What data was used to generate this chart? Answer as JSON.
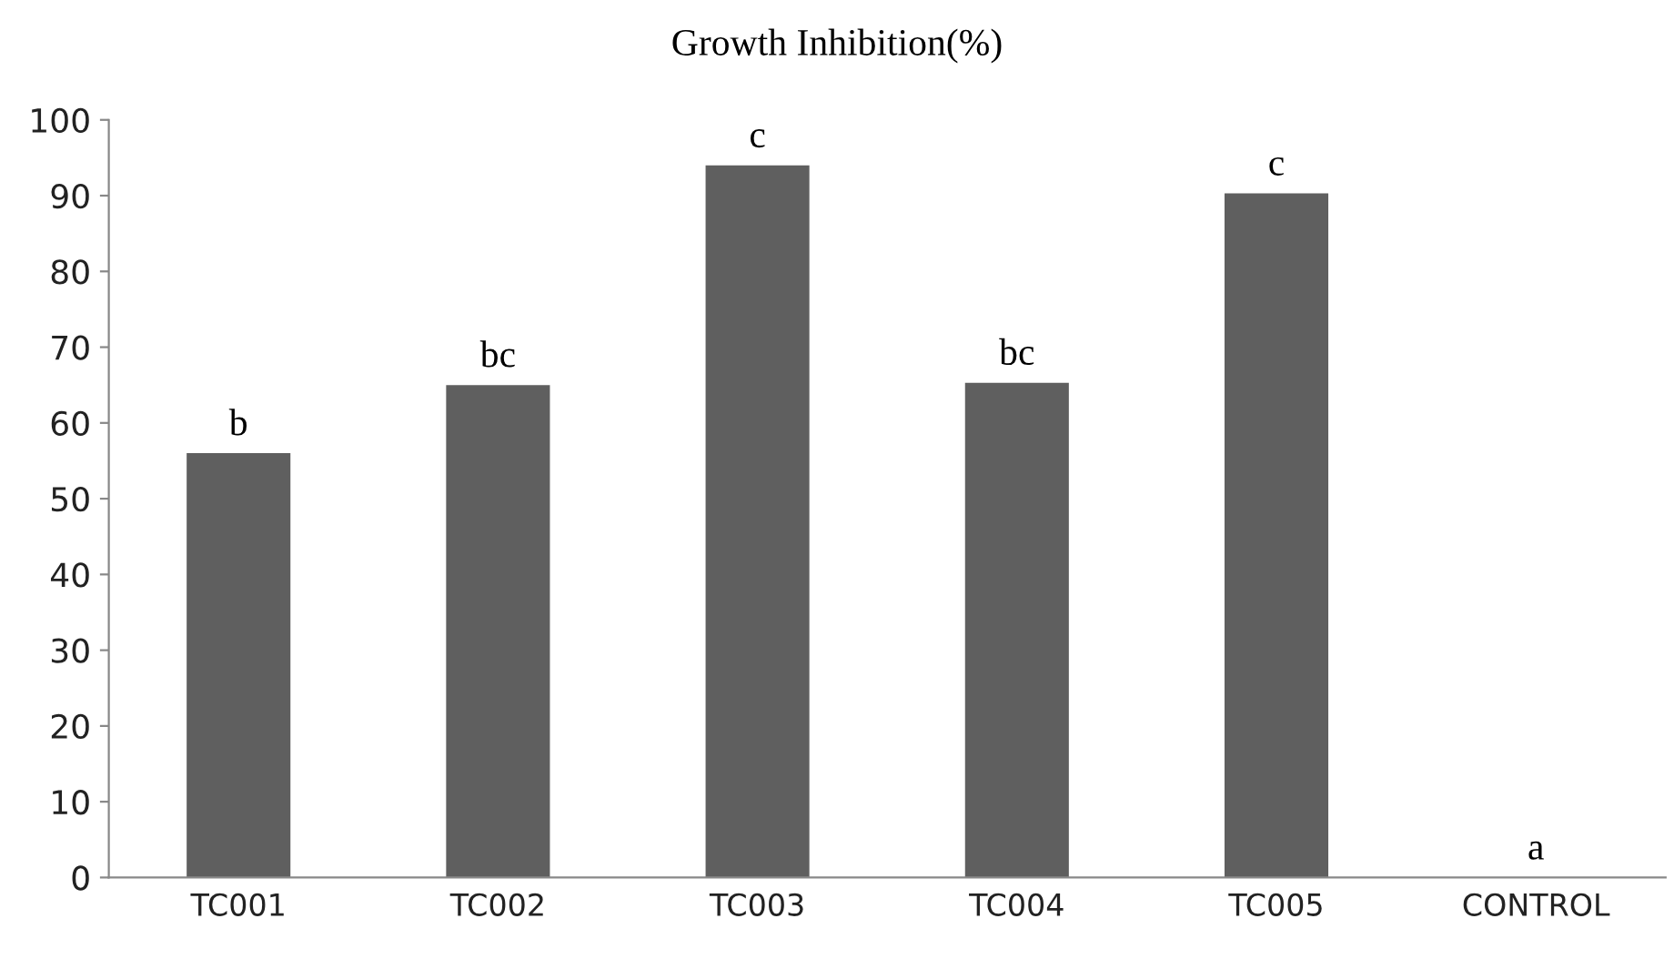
{
  "chart_data": {
    "type": "bar",
    "title": "Growth Inhibition(%)",
    "categories": [
      "TC001",
      "TC002",
      "TC003",
      "TC004",
      "TC005",
      "CONTROL"
    ],
    "values": [
      56,
      65,
      94,
      65.3,
      90.3,
      0
    ],
    "color": "#5f5f5f",
    "ylim": [
      0,
      100
    ],
    "yticks": [
      0,
      10,
      20,
      30,
      40,
      50,
      60,
      70,
      80,
      90,
      100
    ],
    "grid": false,
    "legend": false,
    "annotations": [
      {
        "text": "b",
        "x": "TC001",
        "y": 56
      },
      {
        "text": "bc",
        "x": "TC002",
        "y": 65
      },
      {
        "text": "c",
        "x": "TC003",
        "y": 94
      },
      {
        "text": "bc",
        "x": "TC004",
        "y": 65.3
      },
      {
        "text": "c",
        "x": "TC005",
        "y": 90.3
      },
      {
        "text": "a",
        "x": "CONTROL",
        "y": 0
      }
    ]
  }
}
